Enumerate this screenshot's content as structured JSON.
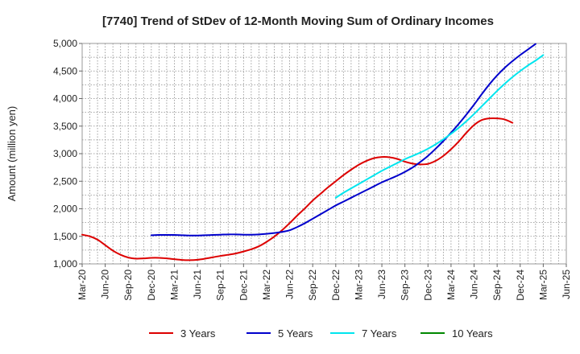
{
  "chart_data": {
    "type": "line",
    "title": "[7740]  Trend of StDev of 12-Month Moving Sum of Ordinary Incomes",
    "xlabel": "",
    "ylabel": "Amount (million yen)",
    "ylim": [
      1000,
      5000
    ],
    "yticks": [
      1000,
      1500,
      2000,
      2500,
      3000,
      3500,
      4000,
      4500,
      5000
    ],
    "ytick_labels": [
      "1,000",
      "1,500",
      "2,000",
      "2,500",
      "3,000",
      "3,500",
      "4,000",
      "4,500",
      "5,000"
    ],
    "x_start": "Mar-20",
    "x_end": "Jun-25",
    "x_tick_labels": [
      "Mar-20",
      "Jun-20",
      "Sep-20",
      "Dec-20",
      "Mar-21",
      "Jun-21",
      "Sep-21",
      "Dec-21",
      "Mar-22",
      "Jun-22",
      "Sep-22",
      "Dec-22",
      "Mar-23",
      "Jun-23",
      "Sep-23",
      "Dec-23",
      "Mar-24",
      "Jun-24",
      "Sep-24",
      "Dec-24",
      "Mar-25",
      "Jun-25"
    ],
    "grid": true,
    "legend_position": "bottom",
    "series": [
      {
        "name": "3 Years",
        "color": "#dd0000",
        "start_index": 0,
        "values": [
          1530,
          1500,
          1440,
          1340,
          1240,
          1165,
          1115,
          1095,
          1100,
          1110,
          1110,
          1100,
          1085,
          1072,
          1068,
          1075,
          1095,
          1120,
          1145,
          1165,
          1190,
          1225,
          1265,
          1320,
          1400,
          1495,
          1610,
          1740,
          1880,
          2010,
          2150,
          2270,
          2390,
          2500,
          2610,
          2710,
          2800,
          2870,
          2920,
          2940,
          2935,
          2905,
          2855,
          2820,
          2805,
          2815,
          2870,
          2960,
          3080,
          3220,
          3380,
          3520,
          3610,
          3640,
          3640,
          3620,
          3560
        ]
      },
      {
        "name": "5 Years",
        "color": "#0000cc",
        "start_index": 9,
        "values": [
          1520,
          1525,
          1525,
          1525,
          1520,
          1515,
          1515,
          1520,
          1525,
          1530,
          1535,
          1535,
          1530,
          1530,
          1535,
          1545,
          1560,
          1580,
          1610,
          1670,
          1740,
          1820,
          1900,
          1980,
          2060,
          2130,
          2200,
          2270,
          2340,
          2410,
          2480,
          2540,
          2600,
          2670,
          2750,
          2850,
          2960,
          3090,
          3230,
          3380,
          3540,
          3710,
          3890,
          4080,
          4260,
          4420,
          4560,
          4680,
          4790,
          4890,
          4990
        ]
      },
      {
        "name": "7 Years",
        "color": "#00e5ee",
        "start_index": 33,
        "values": [
          2200,
          2290,
          2370,
          2450,
          2530,
          2610,
          2690,
          2760,
          2830,
          2900,
          2960,
          3020,
          3090,
          3170,
          3260,
          3360,
          3470,
          3590,
          3720,
          3860,
          4000,
          4140,
          4270,
          4390,
          4500,
          4600,
          4690,
          4790
        ]
      },
      {
        "name": "10 Years",
        "color": "#008800",
        "start_index": 0,
        "values": []
      }
    ]
  }
}
